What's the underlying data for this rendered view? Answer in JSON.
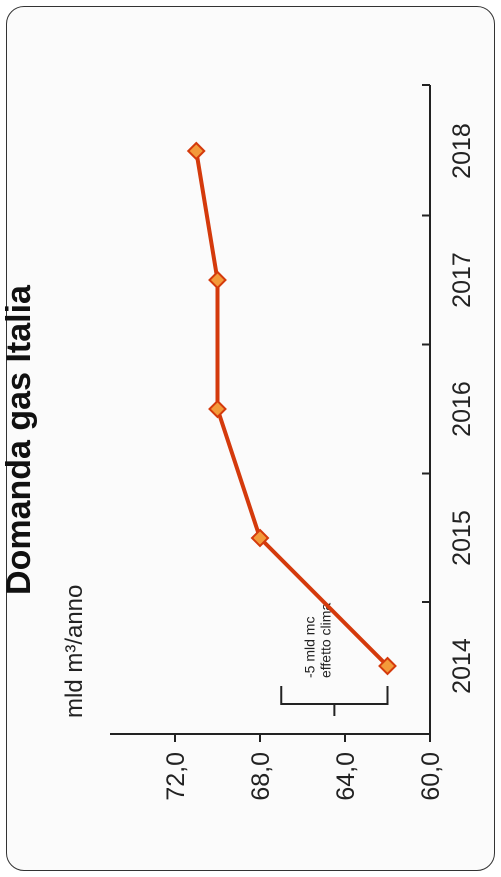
{
  "chart_data": {
    "type": "line",
    "title": "Domanda gas Italia",
    "unit_label": "mld m³/anno",
    "x": [
      "2014",
      "2015",
      "2016",
      "2017",
      "2018"
    ],
    "series": [
      {
        "values": [
          62.0,
          68.0,
          70.0,
          70.0,
          71.0
        ],
        "color": "#d43a0c",
        "marker_color": "#f39a3a"
      }
    ],
    "ylim": [
      60,
      74
    ],
    "yticks": [
      "60,0",
      "64,0",
      "68,0",
      "72,0"
    ],
    "ytick_values": [
      60,
      64,
      68,
      72
    ],
    "annotation": {
      "line1": "-5 mld mc",
      "line2": "effetto clima",
      "range": [
        62,
        67
      ]
    },
    "grid": false,
    "orientation": "rotated 90° counter-clockwise"
  }
}
